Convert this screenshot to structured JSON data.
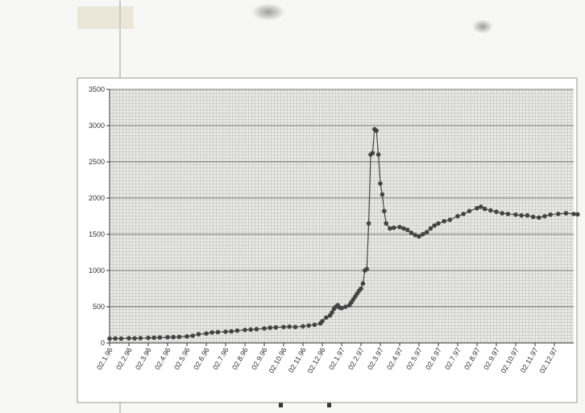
{
  "chart_data": {
    "type": "line",
    "title": "",
    "xlabel": "",
    "ylabel": "",
    "ylim": [
      0,
      3500
    ],
    "yticks": [
      0,
      500,
      1000,
      1500,
      2000,
      2500,
      3000,
      3500
    ],
    "grid": true,
    "legend": "none",
    "x_tick_labels": [
      "02.1.96",
      "02.2.96",
      "02.3.96",
      "02.4.96",
      "02.5.96",
      "02.6.96",
      "02.7.96",
      "02.8.96",
      "02.9.96",
      "02.10.96",
      "02.11.96",
      "02.12.96",
      "02.1.97",
      "02.2.97",
      "02.3.97",
      "02.4.97",
      "02.5.97",
      "02.6.97",
      "02.7.97",
      "02.8.97",
      "02.9.97",
      "02.10.97",
      "02.11.97",
      "02.12.97"
    ],
    "series": [
      {
        "color": "#444444",
        "points": [
          [
            0.0,
            60
          ],
          [
            0.3,
            62
          ],
          [
            0.6,
            60
          ],
          [
            1.0,
            65
          ],
          [
            1.3,
            63
          ],
          [
            1.6,
            66
          ],
          [
            2.0,
            70
          ],
          [
            2.3,
            72
          ],
          [
            2.6,
            75
          ],
          [
            3.0,
            78
          ],
          [
            3.3,
            80
          ],
          [
            3.6,
            83
          ],
          [
            4.0,
            90
          ],
          [
            4.3,
            100
          ],
          [
            4.6,
            120
          ],
          [
            5.0,
            130
          ],
          [
            5.3,
            145
          ],
          [
            5.6,
            150
          ],
          [
            6.0,
            155
          ],
          [
            6.3,
            160
          ],
          [
            6.6,
            170
          ],
          [
            7.0,
            180
          ],
          [
            7.3,
            185
          ],
          [
            7.6,
            190
          ],
          [
            8.0,
            200
          ],
          [
            8.3,
            210
          ],
          [
            8.6,
            215
          ],
          [
            9.0,
            220
          ],
          [
            9.3,
            225
          ],
          [
            9.6,
            220
          ],
          [
            10.0,
            230
          ],
          [
            10.3,
            240
          ],
          [
            10.6,
            250
          ],
          [
            10.9,
            270
          ],
          [
            11.0,
            300
          ],
          [
            11.2,
            350
          ],
          [
            11.4,
            380
          ],
          [
            11.5,
            420
          ],
          [
            11.6,
            470
          ],
          [
            11.7,
            500
          ],
          [
            11.8,
            520
          ],
          [
            11.9,
            490
          ],
          [
            12.0,
            480
          ],
          [
            12.2,
            500
          ],
          [
            12.4,
            520
          ],
          [
            12.5,
            560
          ],
          [
            12.6,
            600
          ],
          [
            12.7,
            640
          ],
          [
            12.8,
            680
          ],
          [
            12.9,
            720
          ],
          [
            13.0,
            750
          ],
          [
            13.1,
            820
          ],
          [
            13.2,
            1000
          ],
          [
            13.3,
            1020
          ],
          [
            13.4,
            1650
          ],
          [
            13.5,
            2600
          ],
          [
            13.6,
            2620
          ],
          [
            13.7,
            2950
          ],
          [
            13.8,
            2930
          ],
          [
            13.9,
            2600
          ],
          [
            14.0,
            2200
          ],
          [
            14.1,
            2050
          ],
          [
            14.2,
            1820
          ],
          [
            14.3,
            1650
          ],
          [
            14.5,
            1580
          ],
          [
            14.7,
            1590
          ],
          [
            15.0,
            1600
          ],
          [
            15.2,
            1580
          ],
          [
            15.4,
            1560
          ],
          [
            15.6,
            1520
          ],
          [
            15.8,
            1490
          ],
          [
            16.0,
            1470
          ],
          [
            16.2,
            1500
          ],
          [
            16.4,
            1530
          ],
          [
            16.6,
            1580
          ],
          [
            16.8,
            1620
          ],
          [
            17.0,
            1650
          ],
          [
            17.3,
            1680
          ],
          [
            17.6,
            1700
          ],
          [
            18.0,
            1750
          ],
          [
            18.3,
            1780
          ],
          [
            18.6,
            1820
          ],
          [
            19.0,
            1860
          ],
          [
            19.2,
            1880
          ],
          [
            19.4,
            1850
          ],
          [
            19.7,
            1830
          ],
          [
            20.0,
            1810
          ],
          [
            20.3,
            1790
          ],
          [
            20.6,
            1780
          ],
          [
            21.0,
            1770
          ],
          [
            21.3,
            1760
          ],
          [
            21.6,
            1760
          ],
          [
            21.9,
            1740
          ],
          [
            22.2,
            1730
          ],
          [
            22.5,
            1750
          ],
          [
            22.8,
            1770
          ],
          [
            23.2,
            1780
          ],
          [
            23.6,
            1790
          ],
          [
            24.0,
            1780
          ],
          [
            24.2,
            1775
          ]
        ]
      }
    ]
  }
}
